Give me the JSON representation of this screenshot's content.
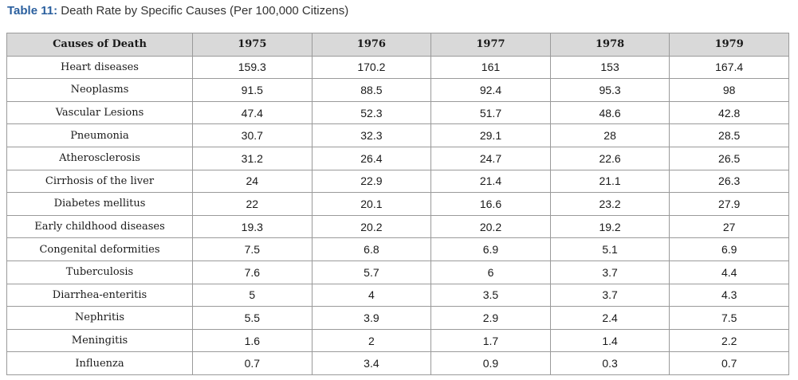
{
  "caption": {
    "label": "Table 11:",
    "text": " Death Rate by Specific Causes (Per 100,000 Citizens)"
  },
  "table": {
    "headers": [
      "Causes of Death",
      "1975",
      "1976",
      "1977",
      "1978",
      "1979"
    ],
    "rows": [
      {
        "cause": "Heart diseases",
        "values": [
          "159.3",
          "170.2",
          "161",
          "153",
          "167.4"
        ]
      },
      {
        "cause": "Neoplasms",
        "values": [
          "91.5",
          "88.5",
          "92.4",
          "95.3",
          "98"
        ]
      },
      {
        "cause": "Vascular Lesions",
        "values": [
          "47.4",
          "52.3",
          "51.7",
          "48.6",
          "42.8"
        ]
      },
      {
        "cause": "Pneumonia",
        "values": [
          "30.7",
          "32.3",
          "29.1",
          "28",
          "28.5"
        ]
      },
      {
        "cause": "Atherosclerosis",
        "values": [
          "31.2",
          "26.4",
          "24.7",
          "22.6",
          "26.5"
        ]
      },
      {
        "cause": "Cirrhosis of the liver",
        "values": [
          "24",
          "22.9",
          "21.4",
          "21.1",
          "26.3"
        ]
      },
      {
        "cause": "Diabetes mellitus",
        "values": [
          "22",
          "20.1",
          "16.6",
          "23.2",
          "27.9"
        ]
      },
      {
        "cause": "Early childhood diseases",
        "values": [
          "19.3",
          "20.2",
          "20.2",
          "19.2",
          "27"
        ]
      },
      {
        "cause": "Congenital deformities",
        "values": [
          "7.5",
          "6.8",
          "6.9",
          "5.1",
          "6.9"
        ]
      },
      {
        "cause": "Tuberculosis",
        "values": [
          "7.6",
          "5.7",
          "6",
          "3.7",
          "4.4"
        ]
      },
      {
        "cause": "Diarrhea-enteritis",
        "values": [
          "5",
          "4",
          "3.5",
          "3.7",
          "4.3"
        ]
      },
      {
        "cause": "Nephritis",
        "values": [
          "5.5",
          "3.9",
          "2.9",
          "2.4",
          "7.5"
        ]
      },
      {
        "cause": "Meningitis",
        "values": [
          "1.6",
          "2",
          "1.7",
          "1.4",
          "2.2"
        ]
      },
      {
        "cause": "Influenza",
        "values": [
          "0.7",
          "3.4",
          "0.9",
          "0.3",
          "0.7"
        ]
      }
    ]
  }
}
